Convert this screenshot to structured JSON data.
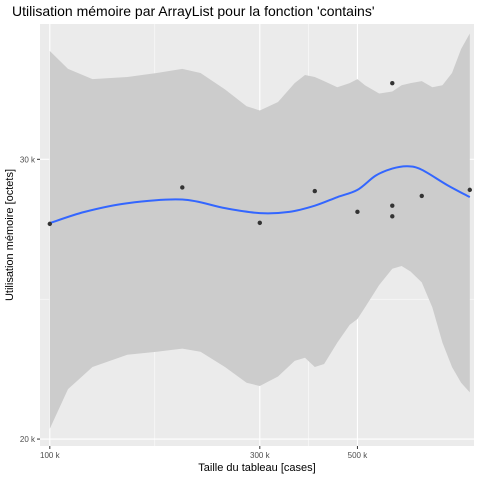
{
  "chart_data": {
    "type": "scatter",
    "title": "Utilisation mémoire par ArrayList pour la fonction 'contains'",
    "xlabel": "Taille du tableau [cases]",
    "ylabel": "Utilisation mémoire [octets]",
    "x_scale": "log10",
    "y_scale": "log10",
    "xlim": [
      95000,
      920000
    ],
    "ylim": [
      19800,
      36500
    ],
    "x_ticks": [
      {
        "value": 100000,
        "label": "100 k"
      },
      {
        "value": 300000,
        "label": "300 k"
      },
      {
        "value": 500000,
        "label": "500 k"
      }
    ],
    "y_ticks": [
      {
        "value": 20000,
        "label": "20 k"
      },
      {
        "value": 30000,
        "label": "30 k"
      }
    ],
    "grid": true,
    "legend": "none",
    "colors": {
      "panel": "#ebebeb",
      "grid_major": "#ffffff",
      "band": "#cccccc",
      "smooth": "#3366ff",
      "points": "#333333"
    },
    "points": [
      {
        "x": 100000,
        "y": 27320
      },
      {
        "x": 200000,
        "y": 28800
      },
      {
        "x": 300000,
        "y": 27360
      },
      {
        "x": 400000,
        "y": 28650
      },
      {
        "x": 500000,
        "y": 27800
      },
      {
        "x": 600000,
        "y": 27620
      },
      {
        "x": 600000,
        "y": 28050
      },
      {
        "x": 600000,
        "y": 33500
      },
      {
        "x": 700000,
        "y": 28450
      },
      {
        "x": 900000,
        "y": 28700
      }
    ],
    "smooth_line": [
      {
        "x": 100000,
        "y": 27350
      },
      {
        "x": 120000,
        "y": 27800
      },
      {
        "x": 150000,
        "y": 28150
      },
      {
        "x": 200000,
        "y": 28300
      },
      {
        "x": 250000,
        "y": 27950
      },
      {
        "x": 300000,
        "y": 27750
      },
      {
        "x": 350000,
        "y": 27800
      },
      {
        "x": 400000,
        "y": 28050
      },
      {
        "x": 450000,
        "y": 28400
      },
      {
        "x": 500000,
        "y": 28700
      },
      {
        "x": 550000,
        "y": 29300
      },
      {
        "x": 600000,
        "y": 29600
      },
      {
        "x": 650000,
        "y": 29700
      },
      {
        "x": 700000,
        "y": 29550
      },
      {
        "x": 800000,
        "y": 28900
      },
      {
        "x": 900000,
        "y": 28400
      }
    ],
    "confidence_band": [
      {
        "x": 100000,
        "lower": 20300,
        "upper": 35100
      },
      {
        "x": 110000,
        "lower": 21500,
        "upper": 34200
      },
      {
        "x": 125000,
        "lower": 22200,
        "upper": 33700
      },
      {
        "x": 150000,
        "lower": 22600,
        "upper": 33800
      },
      {
        "x": 175000,
        "lower": 22700,
        "upper": 34000
      },
      {
        "x": 200000,
        "lower": 22800,
        "upper": 34200
      },
      {
        "x": 220000,
        "lower": 22700,
        "upper": 34000
      },
      {
        "x": 250000,
        "lower": 22200,
        "upper": 33200
      },
      {
        "x": 280000,
        "lower": 21700,
        "upper": 32400
      },
      {
        "x": 300000,
        "lower": 21600,
        "upper": 32200
      },
      {
        "x": 330000,
        "lower": 21900,
        "upper": 32600
      },
      {
        "x": 360000,
        "lower": 22400,
        "upper": 33500
      },
      {
        "x": 380000,
        "lower": 22500,
        "upper": 33900
      },
      {
        "x": 400000,
        "lower": 22200,
        "upper": 33800
      },
      {
        "x": 420000,
        "lower": 22300,
        "upper": 33600
      },
      {
        "x": 450000,
        "lower": 23000,
        "upper": 33300
      },
      {
        "x": 480000,
        "lower": 23600,
        "upper": 33500
      },
      {
        "x": 500000,
        "lower": 23800,
        "upper": 33700
      },
      {
        "x": 520000,
        "lower": 24200,
        "upper": 33400
      },
      {
        "x": 560000,
        "lower": 25000,
        "upper": 33000
      },
      {
        "x": 600000,
        "lower": 25600,
        "upper": 33100
      },
      {
        "x": 630000,
        "lower": 25700,
        "upper": 33400
      },
      {
        "x": 660000,
        "lower": 25500,
        "upper": 33500
      },
      {
        "x": 700000,
        "lower": 25100,
        "upper": 33600
      },
      {
        "x": 740000,
        "lower": 24200,
        "upper": 33300
      },
      {
        "x": 780000,
        "lower": 23000,
        "upper": 33400
      },
      {
        "x": 820000,
        "lower": 22200,
        "upper": 34000
      },
      {
        "x": 860000,
        "lower": 21700,
        "upper": 35200
      },
      {
        "x": 900000,
        "lower": 21400,
        "upper": 36000
      }
    ]
  }
}
